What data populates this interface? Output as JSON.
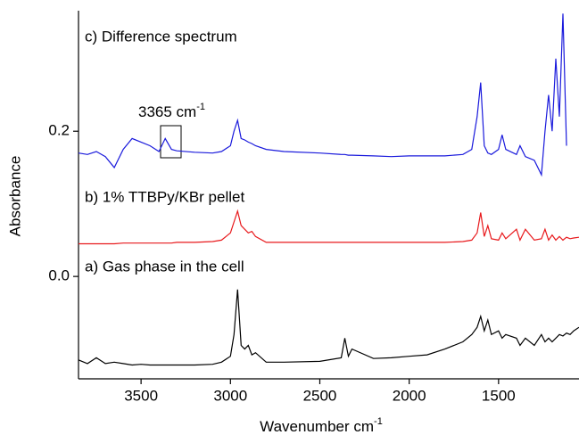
{
  "chart_data": {
    "type": "line",
    "x_label": {
      "text": "Wavenumber cm",
      "superscript": "-1"
    },
    "y_label": "Absorbance",
    "x": [
      3850,
      3800,
      3750,
      3700,
      3650,
      3600,
      3550,
      3500,
      3450,
      3400,
      3365,
      3330,
      3300,
      3200,
      3100,
      3050,
      3000,
      2980,
      2960,
      2940,
      2920,
      2900,
      2880,
      2860,
      2800,
      2700,
      2500,
      2380,
      2360,
      2340,
      2320,
      2200,
      2100,
      2000,
      1900,
      1800,
      1700,
      1650,
      1620,
      1600,
      1580,
      1560,
      1540,
      1500,
      1480,
      1460,
      1400,
      1380,
      1350,
      1300,
      1260,
      1240,
      1220,
      1200,
      1180,
      1160,
      1140,
      1120,
      1100,
      1080,
      1050
    ],
    "xlim": [
      3850,
      1050
    ],
    "xticks": [
      3500,
      3000,
      2500,
      2000,
      1500
    ],
    "ylim": [
      -0.141,
      0.366
    ],
    "yticks": [
      {
        "value": 0,
        "label": "0.0"
      },
      0.2
    ],
    "series": [
      {
        "name": "a) Gas phase in the cell",
        "color": "#000000",
        "values": [
          -0.115,
          -0.12,
          -0.112,
          -0.12,
          -0.118,
          -0.12,
          -0.122,
          -0.121,
          -0.122,
          -0.122,
          -0.122,
          -0.122,
          -0.122,
          -0.122,
          -0.121,
          -0.118,
          -0.11,
          -0.08,
          -0.018,
          -0.095,
          -0.1,
          -0.095,
          -0.108,
          -0.105,
          -0.118,
          -0.118,
          -0.117,
          -0.112,
          -0.085,
          -0.11,
          -0.1,
          -0.113,
          -0.112,
          -0.11,
          -0.108,
          -0.1,
          -0.09,
          -0.08,
          -0.07,
          -0.055,
          -0.075,
          -0.06,
          -0.08,
          -0.075,
          -0.085,
          -0.08,
          -0.085,
          -0.095,
          -0.085,
          -0.095,
          -0.08,
          -0.09,
          -0.085,
          -0.09,
          -0.085,
          -0.08,
          -0.082,
          -0.078,
          -0.08,
          -0.075,
          -0.07
        ]
      },
      {
        "name": "b) 1% TTBPy/KBr pellet",
        "color": "#e8191c",
        "values": [
          0.045,
          0.045,
          0.045,
          0.045,
          0.045,
          0.046,
          0.046,
          0.046,
          0.046,
          0.046,
          0.046,
          0.046,
          0.047,
          0.047,
          0.048,
          0.05,
          0.06,
          0.075,
          0.09,
          0.07,
          0.065,
          0.06,
          0.062,
          0.055,
          0.047,
          0.047,
          0.047,
          0.047,
          0.047,
          0.047,
          0.047,
          0.047,
          0.047,
          0.047,
          0.047,
          0.047,
          0.048,
          0.05,
          0.06,
          0.088,
          0.055,
          0.07,
          0.052,
          0.05,
          0.06,
          0.052,
          0.065,
          0.05,
          0.065,
          0.05,
          0.052,
          0.065,
          0.05,
          0.057,
          0.05,
          0.055,
          0.05,
          0.054,
          0.052,
          0.053,
          0.054
        ]
      },
      {
        "name": "c) Difference spectrum",
        "color": "#1a1adc",
        "values": [
          0.17,
          0.168,
          0.172,
          0.165,
          0.15,
          0.175,
          0.19,
          0.185,
          0.18,
          0.172,
          0.19,
          0.175,
          0.173,
          0.171,
          0.17,
          0.172,
          0.18,
          0.2,
          0.215,
          0.19,
          0.188,
          0.185,
          0.183,
          0.18,
          0.175,
          0.172,
          0.17,
          0.168,
          0.168,
          0.167,
          0.167,
          0.166,
          0.165,
          0.166,
          0.166,
          0.166,
          0.168,
          0.175,
          0.22,
          0.267,
          0.18,
          0.17,
          0.168,
          0.175,
          0.195,
          0.175,
          0.168,
          0.18,
          0.165,
          0.16,
          0.14,
          0.2,
          0.25,
          0.2,
          0.3,
          0.22,
          0.362,
          0.18,
          null,
          null,
          null
        ]
      }
    ],
    "annotation": {
      "text": "3365 cm",
      "superscript": "-1"
    }
  }
}
